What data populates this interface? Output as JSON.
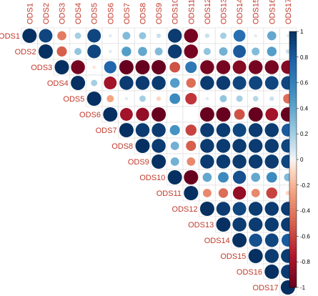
{
  "chart_data": {
    "type": "heatmap",
    "style": "corrplot-upper-circle",
    "variables": [
      "ODS1",
      "ODS2",
      "ODS3",
      "ODS4",
      "ODS5",
      "ODS6",
      "ODS7",
      "ODS8",
      "ODS9",
      "ODS10",
      "ODS11",
      "ODS12",
      "ODS13",
      "ODS14",
      "ODS15",
      "ODS16",
      "ODS17"
    ],
    "matrix": [
      [
        1,
        0.9,
        -0.4,
        0.2,
        0.9,
        0.05,
        0.3,
        0.25,
        0.1,
        0.95,
        -0.95,
        0.1,
        0.2,
        0.7,
        0.05,
        0.4,
        0.05
      ],
      [
        null,
        1,
        -0.5,
        0.25,
        0.9,
        0.05,
        0.45,
        0.4,
        0.3,
        0.95,
        -0.95,
        0.25,
        0.35,
        0.8,
        0.3,
        0.45,
        0.1
      ],
      [
        null,
        null,
        1,
        -0.95,
        -0.05,
        0.75,
        -1,
        -1,
        -1,
        -0.55,
        0.65,
        -0.95,
        -0.95,
        -0.9,
        -0.95,
        -0.95,
        -0.9
      ],
      [
        null,
        null,
        null,
        1,
        0.2,
        -0.8,
        0.95,
        0.95,
        0.95,
        0.45,
        -0.45,
        0.95,
        0.95,
        0.9,
        0.9,
        0.9,
        0.9
      ],
      [
        null,
        null,
        null,
        null,
        1,
        -0.25,
        0.05,
        0.2,
        -0.1,
        0.55,
        -0.65,
        0.05,
        0.25,
        0.2,
        0.15,
        0.1,
        -0.45
      ],
      [
        null,
        null,
        null,
        null,
        null,
        1,
        -0.8,
        -0.85,
        -1,
        0,
        0,
        -1,
        -1,
        -0.55,
        -1,
        -0.8,
        -1
      ],
      [
        null,
        null,
        null,
        null,
        null,
        null,
        1,
        0.95,
        0.95,
        0.5,
        -0.6,
        0.95,
        0.95,
        0.9,
        0.95,
        0.95,
        0.8
      ],
      [
        null,
        null,
        null,
        null,
        null,
        null,
        null,
        1,
        0.95,
        0.35,
        -0.5,
        0.95,
        0.95,
        0.95,
        0.95,
        0.95,
        0.9
      ],
      [
        null,
        null,
        null,
        null,
        null,
        null,
        null,
        null,
        1,
        0.35,
        -0.35,
        0.95,
        0.95,
        0.95,
        0.95,
        0.95,
        0.9
      ],
      [
        null,
        null,
        null,
        null,
        null,
        null,
        null,
        null,
        null,
        1,
        -1,
        0.4,
        0.55,
        0.85,
        0.4,
        0.55,
        0.3
      ],
      [
        null,
        null,
        null,
        null,
        null,
        null,
        null,
        null,
        null,
        null,
        1,
        -0.35,
        -0.45,
        -0.85,
        -0.35,
        -0.6,
        -0.1
      ],
      [
        null,
        null,
        null,
        null,
        null,
        null,
        null,
        null,
        null,
        null,
        null,
        1,
        0.95,
        0.9,
        0.95,
        0.95,
        0.95
      ],
      [
        null,
        null,
        null,
        null,
        null,
        null,
        null,
        null,
        null,
        null,
        null,
        null,
        1,
        0.95,
        0.95,
        0.95,
        0.95
      ],
      [
        null,
        null,
        null,
        null,
        null,
        null,
        null,
        null,
        null,
        null,
        null,
        null,
        null,
        1,
        0.85,
        0.9,
        0.8
      ],
      [
        null,
        null,
        null,
        null,
        null,
        null,
        null,
        null,
        null,
        null,
        null,
        null,
        null,
        null,
        1,
        0.95,
        0.95
      ],
      [
        null,
        null,
        null,
        null,
        null,
        null,
        null,
        null,
        null,
        null,
        null,
        null,
        null,
        null,
        null,
        1,
        0.95
      ],
      [
        null,
        null,
        null,
        null,
        null,
        null,
        null,
        null,
        null,
        null,
        null,
        null,
        null,
        null,
        null,
        null,
        1
      ]
    ],
    "colorbar": {
      "range": [
        -1,
        1
      ],
      "ticks": [
        "1",
        "0.8",
        "0.6",
        "0.4",
        "0.2",
        "0",
        "-0.2",
        "-0.4",
        "-0.6",
        "-0.8",
        "-1"
      ]
    },
    "colors": {
      "negative_end": "#67001f",
      "neutral": "#f7f7f7",
      "positive_end": "#053061",
      "label": "#c0392b",
      "grid": "#d9d9d9"
    },
    "title": "",
    "xlabel": "",
    "ylabel": ""
  }
}
